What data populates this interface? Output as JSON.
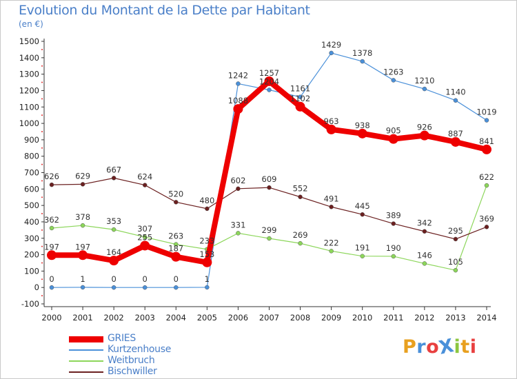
{
  "header": {
    "title": "Evolution du Montant de la Dette par Habitant",
    "unit": "(en €)"
  },
  "brand": {
    "text": "ProXiti",
    "colors": [
      "#e8a020",
      "#4a90d9",
      "#e84040",
      "#4a90d9",
      "#8cc63f",
      "#e8a020",
      "#e84040"
    ]
  },
  "chart_data": {
    "type": "line",
    "title": "Evolution du Montant de la Dette par Habitant",
    "ylabel": "(en €)",
    "xlabel": "",
    "x": [
      "2000",
      "2001",
      "2002",
      "2003",
      "2004",
      "2005",
      "2006",
      "2007",
      "2008",
      "2009",
      "2010",
      "2011",
      "2012",
      "2013",
      "2014"
    ],
    "ylim": [
      -100,
      1500
    ],
    "yticks": [
      -100,
      0,
      100,
      200,
      300,
      400,
      500,
      600,
      700,
      800,
      900,
      1000,
      1100,
      1200,
      1300,
      1400,
      1500
    ],
    "grid": false,
    "legend_position": "bottom-left",
    "series": [
      {
        "name": "GRIES",
        "color": "#ee0000",
        "emphasis": true,
        "values": [
          197,
          197,
          164,
          255,
          187,
          153,
          1088,
          1257,
          1102,
          963,
          938,
          905,
          926,
          887,
          841
        ]
      },
      {
        "name": "Kurtzenhouse",
        "color": "#4a90d9",
        "values": [
          0,
          1,
          0,
          0,
          0,
          1,
          1242,
          1204,
          1161,
          1429,
          1378,
          1263,
          1210,
          1140,
          1019
        ]
      },
      {
        "name": "Weitbruch",
        "color": "#8cd65a",
        "values": [
          362,
          378,
          353,
          307,
          263,
          233,
          331,
          299,
          269,
          222,
          191,
          190,
          146,
          105,
          622
        ]
      },
      {
        "name": "Bischwiller",
        "color": "#6b2020",
        "values": [
          626,
          629,
          667,
          624,
          520,
          480,
          602,
          609,
          552,
          491,
          445,
          389,
          342,
          295,
          369
        ]
      }
    ]
  }
}
